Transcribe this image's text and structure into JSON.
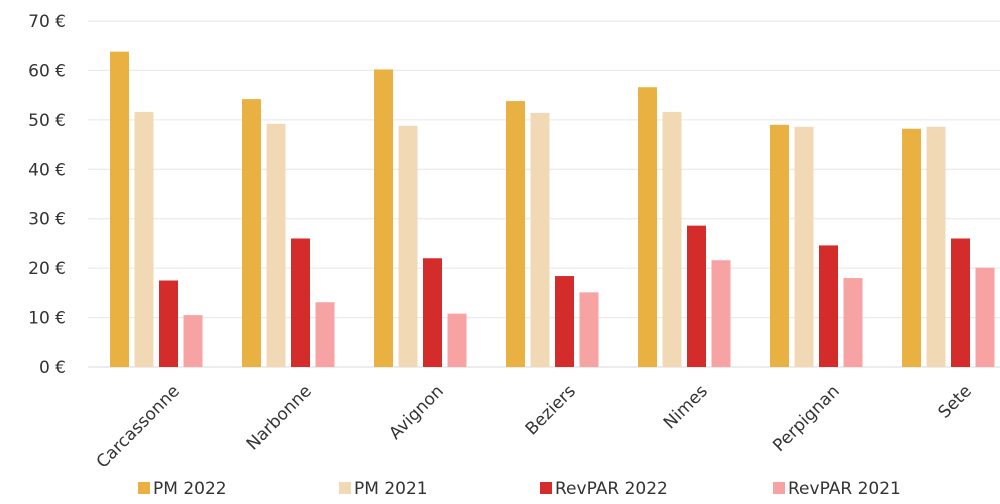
{
  "chart_data": {
    "type": "bar",
    "title": "",
    "xlabel": "",
    "ylabel": "",
    "categories": [
      "Carcassonne",
      "Narbonne",
      "Avignon",
      "Beziers",
      "Nimes",
      "Perpignan",
      "Sete"
    ],
    "series": [
      {
        "name": "PM 2022",
        "color": "#E8B142",
        "values": [
          63.8,
          54.2,
          60.2,
          53.8,
          56.6,
          49.0,
          48.2
        ]
      },
      {
        "name": "PM 2021",
        "color": "#F2D9B5",
        "values": [
          51.6,
          49.2,
          48.8,
          51.4,
          51.6,
          48.6,
          48.6
        ]
      },
      {
        "name": "RevPAR 2022",
        "color": "#D42B2B",
        "values": [
          17.5,
          26.0,
          22.0,
          18.4,
          28.6,
          24.6,
          26.0
        ]
      },
      {
        "name": "RevPAR 2021",
        "color": "#F7A3A3",
        "values": [
          10.5,
          13.1,
          10.8,
          15.1,
          21.6,
          18.0,
          20.1
        ]
      }
    ],
    "ylim": [
      0,
      70
    ],
    "yticks": [
      "0 €",
      "10 €",
      "20 €",
      "30 €",
      "40 €",
      "50 €",
      "60 €",
      "70 €"
    ],
    "grid": true,
    "legend": "bottom"
  }
}
